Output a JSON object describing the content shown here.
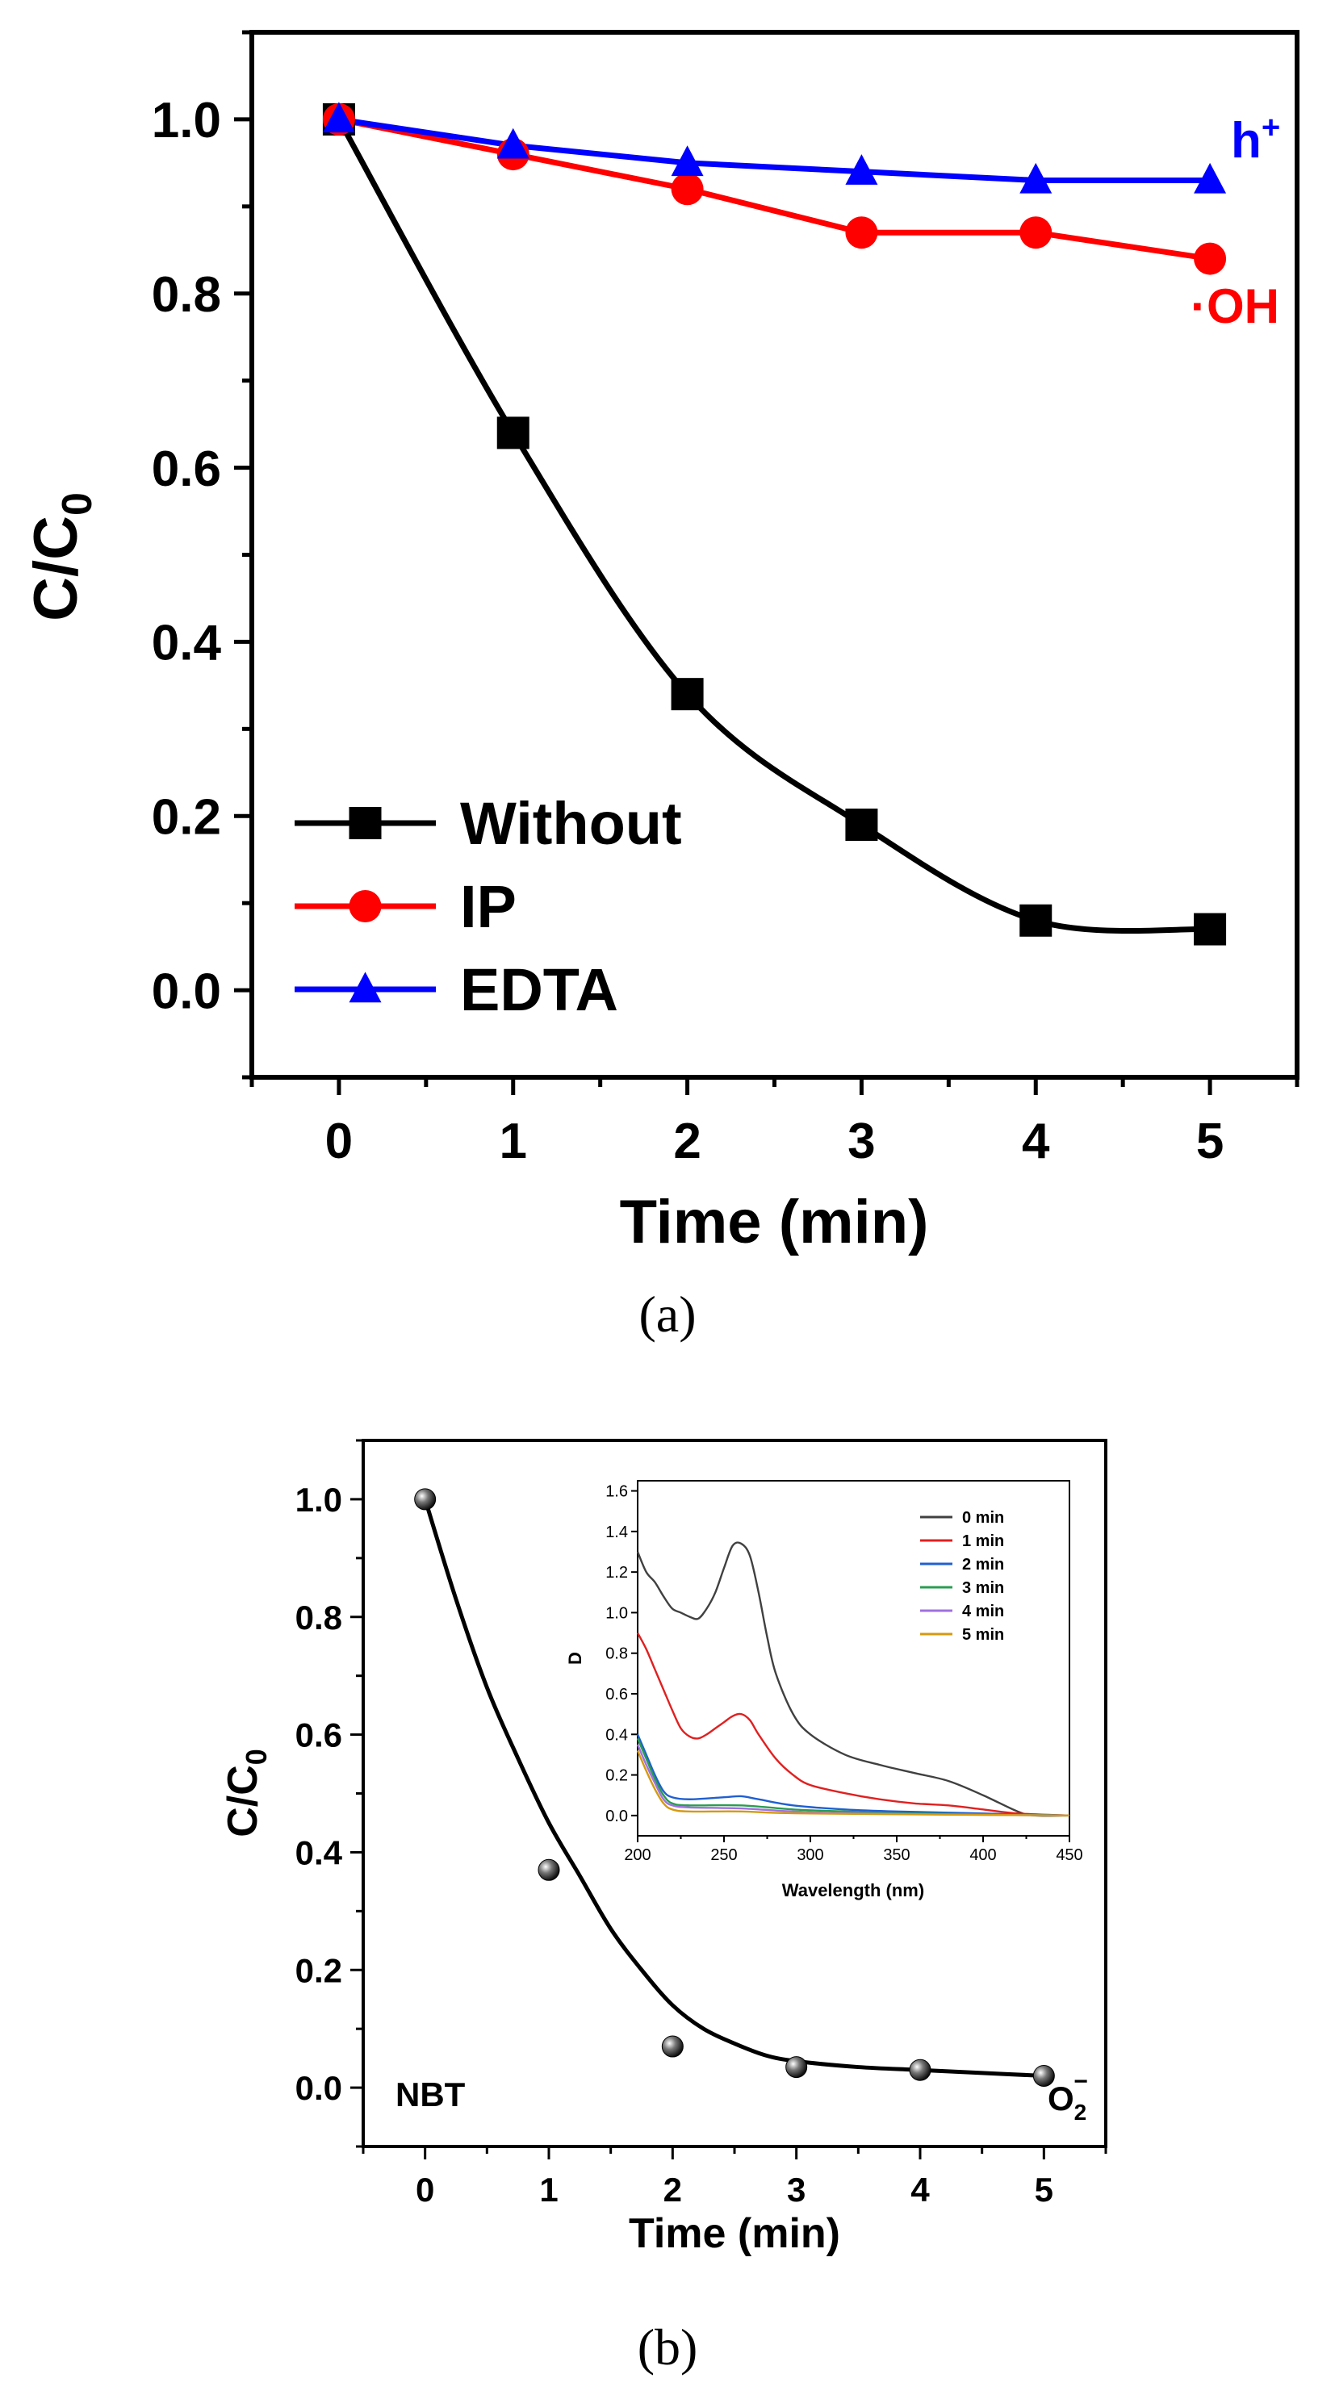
{
  "chart_data": [
    {
      "id": "a",
      "type": "line",
      "caption": "(a)",
      "xlabel": "Time (min)",
      "ylabel_main": "C/C",
      "ylabel_sub": "0",
      "xlim": [
        -0.5,
        5.5
      ],
      "ylim": [
        -0.1,
        1.1
      ],
      "xticks": [
        0,
        1,
        2,
        3,
        4,
        5
      ],
      "yticks": [
        0.0,
        0.2,
        0.4,
        0.6,
        0.8,
        1.0
      ],
      "xtick_labels": [
        "0",
        "1",
        "2",
        "3",
        "4",
        "5"
      ],
      "ytick_labels": [
        "0.0",
        "0.2",
        "0.4",
        "0.6",
        "0.8",
        "1.0"
      ],
      "x": [
        0,
        1,
        2,
        3,
        4,
        5
      ],
      "series": [
        {
          "name": "Without",
          "color": "#000000",
          "marker": "square",
          "smooth": true,
          "values": [
            1.0,
            0.64,
            0.34,
            0.19,
            0.08,
            0.07
          ]
        },
        {
          "name": "IP",
          "color": "#ff0000",
          "marker": "circle",
          "smooth": false,
          "values": [
            1.0,
            0.96,
            0.92,
            0.87,
            0.87,
            0.84
          ]
        },
        {
          "name": "EDTA",
          "color": "#0000ff",
          "marker": "triangle",
          "smooth": false,
          "values": [
            1.0,
            0.97,
            0.95,
            0.94,
            0.93,
            0.93
          ]
        }
      ],
      "annotations": [
        {
          "text": "h",
          "sup": "+",
          "color": "#0000ff"
        },
        {
          "text": "·OH",
          "color": "#ff0000"
        }
      ],
      "legend": "bottom-left"
    },
    {
      "id": "b",
      "type": "scatter",
      "caption": "(b)",
      "xlabel": "Time (min)",
      "ylabel_main": "C/C",
      "ylabel_sub": "0",
      "xlim": [
        -0.5,
        5.5
      ],
      "ylim": [
        -0.1,
        1.1
      ],
      "xticks": [
        0,
        1,
        2,
        3,
        4,
        5
      ],
      "yticks": [
        0.0,
        0.2,
        0.4,
        0.6,
        0.8,
        1.0
      ],
      "xtick_labels": [
        "0",
        "1",
        "2",
        "3",
        "4",
        "5"
      ],
      "ytick_labels": [
        "0.0",
        "0.2",
        "0.4",
        "0.6",
        "0.8",
        "1.0"
      ],
      "x": [
        0,
        1,
        2,
        3,
        4,
        5
      ],
      "values": [
        1.0,
        0.37,
        0.07,
        0.035,
        0.03,
        0.02
      ],
      "fit": [
        [
          0,
          1.0
        ],
        [
          0.25,
          0.83
        ],
        [
          0.5,
          0.68
        ],
        [
          0.75,
          0.56
        ],
        [
          1,
          0.45
        ],
        [
          1.25,
          0.36
        ],
        [
          1.5,
          0.27
        ],
        [
          1.75,
          0.2
        ],
        [
          2,
          0.14
        ],
        [
          2.25,
          0.1
        ],
        [
          2.5,
          0.075
        ],
        [
          2.75,
          0.055
        ],
        [
          3,
          0.045
        ],
        [
          3.5,
          0.035
        ],
        [
          4,
          0.03
        ],
        [
          4.5,
          0.025
        ],
        [
          5,
          0.02
        ]
      ],
      "label_left": "NBT",
      "label_right_main": "O",
      "label_right_sub": "2",
      "label_right_sup": "−",
      "inset": {
        "type": "line",
        "xlabel": "Wavelength (nm)",
        "ylabel": "D",
        "xlim": [
          200,
          450
        ],
        "ylim": [
          -0.1,
          1.65
        ],
        "xticks": [
          200,
          250,
          300,
          350,
          400,
          450
        ],
        "yticks": [
          0.0,
          0.2,
          0.4,
          0.6,
          0.8,
          1.0,
          1.2,
          1.4,
          1.6
        ],
        "xtick_labels": [
          "200",
          "250",
          "300",
          "350",
          "400",
          "450"
        ],
        "ytick_labels": [
          "0.0",
          "0.2",
          "0.4",
          "0.6",
          "0.8",
          "1.0",
          "1.2",
          "1.4",
          "1.6"
        ],
        "series": [
          {
            "name": "0 min",
            "color": "#404040",
            "points": [
              [
                200,
                1.3
              ],
              [
                205,
                1.2
              ],
              [
                210,
                1.15
              ],
              [
                215,
                1.08
              ],
              [
                220,
                1.02
              ],
              [
                225,
                1.0
              ],
              [
                230,
                0.98
              ],
              [
                235,
                0.97
              ],
              [
                240,
                1.02
              ],
              [
                245,
                1.1
              ],
              [
                250,
                1.22
              ],
              [
                255,
                1.33
              ],
              [
                260,
                1.34
              ],
              [
                265,
                1.28
              ],
              [
                270,
                1.1
              ],
              [
                275,
                0.88
              ],
              [
                280,
                0.7
              ],
              [
                290,
                0.5
              ],
              [
                300,
                0.4
              ],
              [
                320,
                0.3
              ],
              [
                340,
                0.25
              ],
              [
                360,
                0.21
              ],
              [
                380,
                0.17
              ],
              [
                400,
                0.1
              ],
              [
                420,
                0.02
              ],
              [
                430,
                0.0
              ],
              [
                450,
                0.0
              ]
            ]
          },
          {
            "name": "1 min",
            "color": "#e02020",
            "points": [
              [
                200,
                0.9
              ],
              [
                205,
                0.82
              ],
              [
                210,
                0.72
              ],
              [
                215,
                0.62
              ],
              [
                220,
                0.52
              ],
              [
                225,
                0.43
              ],
              [
                230,
                0.39
              ],
              [
                235,
                0.38
              ],
              [
                240,
                0.4
              ],
              [
                245,
                0.43
              ],
              [
                250,
                0.46
              ],
              [
                255,
                0.49
              ],
              [
                260,
                0.5
              ],
              [
                265,
                0.47
              ],
              [
                270,
                0.4
              ],
              [
                280,
                0.28
              ],
              [
                290,
                0.2
              ],
              [
                300,
                0.15
              ],
              [
                320,
                0.11
              ],
              [
                340,
                0.08
              ],
              [
                360,
                0.06
              ],
              [
                380,
                0.05
              ],
              [
                400,
                0.03
              ],
              [
                420,
                0.01
              ],
              [
                450,
                0.0
              ]
            ]
          },
          {
            "name": "2 min",
            "color": "#1f5fd0",
            "points": [
              [
                200,
                0.4
              ],
              [
                205,
                0.3
              ],
              [
                210,
                0.2
              ],
              [
                215,
                0.12
              ],
              [
                220,
                0.09
              ],
              [
                230,
                0.08
              ],
              [
                250,
                0.09
              ],
              [
                260,
                0.095
              ],
              [
                270,
                0.08
              ],
              [
                290,
                0.05
              ],
              [
                320,
                0.03
              ],
              [
                350,
                0.02
              ],
              [
                400,
                0.01
              ],
              [
                450,
                0.0
              ]
            ]
          },
          {
            "name": "3 min",
            "color": "#2a9d50",
            "points": [
              [
                200,
                0.38
              ],
              [
                205,
                0.28
              ],
              [
                210,
                0.18
              ],
              [
                215,
                0.1
              ],
              [
                220,
                0.06
              ],
              [
                230,
                0.05
              ],
              [
                260,
                0.05
              ],
              [
                290,
                0.03
              ],
              [
                320,
                0.02
              ],
              [
                360,
                0.01
              ],
              [
                450,
                0.0
              ]
            ]
          },
          {
            "name": "4 min",
            "color": "#a070e0",
            "points": [
              [
                200,
                0.35
              ],
              [
                205,
                0.25
              ],
              [
                210,
                0.16
              ],
              [
                215,
                0.08
              ],
              [
                220,
                0.05
              ],
              [
                230,
                0.04
              ],
              [
                260,
                0.035
              ],
              [
                290,
                0.02
              ],
              [
                330,
                0.01
              ],
              [
                450,
                0.0
              ]
            ]
          },
          {
            "name": "5 min",
            "color": "#d49a10",
            "points": [
              [
                200,
                0.32
              ],
              [
                205,
                0.22
              ],
              [
                210,
                0.13
              ],
              [
                215,
                0.06
              ],
              [
                220,
                0.03
              ],
              [
                230,
                0.02
              ],
              [
                260,
                0.02
              ],
              [
                300,
                0.01
              ],
              [
                450,
                0.0
              ]
            ]
          }
        ]
      }
    }
  ]
}
